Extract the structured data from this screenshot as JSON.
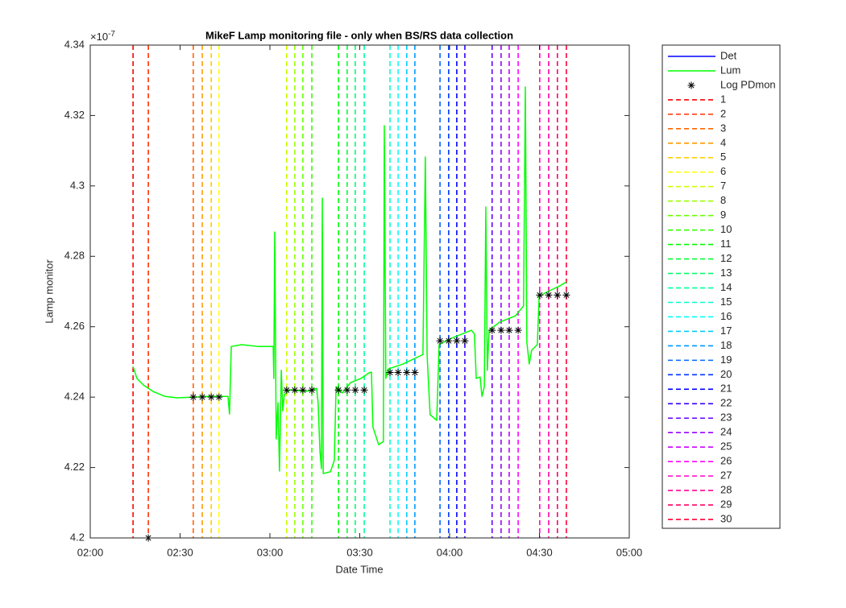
{
  "chart_data": {
    "type": "line",
    "title": "MikeF Lamp monitoring file - only when BS/RS data collection",
    "x_label": "Date Time",
    "y_label": "Lamp monitor",
    "y_scale_base": "×10",
    "y_scale_power": "-7",
    "xlim": [
      120,
      300
    ],
    "xticks": [
      {
        "value": 120,
        "label": "02:00"
      },
      {
        "value": 150,
        "label": "02:30"
      },
      {
        "value": 180,
        "label": "03:00"
      },
      {
        "value": 210,
        "label": "03:30"
      },
      {
        "value": 240,
        "label": "04:00"
      },
      {
        "value": 270,
        "label": "04:30"
      },
      {
        "value": 300,
        "label": "05:00"
      }
    ],
    "ylim": [
      4.2,
      4.34
    ],
    "yticks": [
      4.2,
      4.22,
      4.24,
      4.26,
      4.28,
      4.3,
      4.32,
      4.34
    ],
    "grid": false,
    "legend": "outside-right",
    "series": [
      {
        "name": "Det",
        "color": "#0000ff",
        "x": [],
        "values": []
      },
      {
        "name": "Lum",
        "color": "#00ff00",
        "x": [
          134.3,
          135.6,
          137.8,
          141.0,
          145.0,
          149.1,
          154.4,
          159.8,
          166.0,
          166.5,
          167.1,
          170.6,
          176.0,
          181.1,
          181.3,
          181.6,
          182.1,
          182.7,
          183.2,
          183.8,
          184.3,
          184.8,
          186.7,
          192.1,
          195.6,
          196.1,
          196.7,
          197.2,
          197.5,
          197.8,
          200.2,
          201.5,
          202.1,
          204.2,
          206.9,
          210.4,
          213.1,
          213.9,
          214.4,
          216.3,
          217.9,
          218.2,
          218.7,
          219.5,
          224.4,
          228.4,
          231.1,
          231.9,
          232.5,
          233.5,
          235.7,
          236.5,
          240.5,
          247.3,
          248.3,
          248.9,
          250.2,
          250.8,
          251.6,
          252.1,
          252.6,
          253.2,
          256.7,
          262.0,
          264.7,
          265.3,
          265.8,
          266.6,
          267.4,
          269.3,
          269.9,
          272.8,
          276.8,
          279.0
        ],
        "values": [
          4.2487,
          4.2453,
          4.2434,
          4.2416,
          4.2402,
          4.2398,
          4.24,
          4.2402,
          4.2402,
          4.2352,
          4.2544,
          4.2549,
          4.2544,
          4.2544,
          4.2453,
          4.2869,
          4.2281,
          4.2384,
          4.219,
          4.2476,
          4.2361,
          4.2407,
          4.2421,
          4.2416,
          4.2425,
          4.2384,
          4.2247,
          4.2197,
          4.2965,
          4.2183,
          4.2188,
          4.222,
          4.243,
          4.2412,
          4.2441,
          4.2453,
          4.2469,
          4.2471,
          4.2315,
          4.2265,
          4.2274,
          4.3171,
          4.2453,
          4.248,
          4.2494,
          4.251,
          4.2521,
          4.3082,
          4.2517,
          4.235,
          4.2334,
          4.2549,
          4.2567,
          4.259,
          4.2579,
          4.2453,
          4.2457,
          4.2402,
          4.243,
          4.294,
          4.2476,
          4.259,
          4.2613,
          4.2631,
          4.2659,
          4.3281,
          4.2556,
          4.2494,
          4.2533,
          4.2549,
          4.2686,
          4.27,
          4.2716,
          4.2727
        ]
      },
      {
        "name": "Log PDmon",
        "color": "#000000",
        "marker": "*",
        "line": false,
        "x": [
          139.4,
          154.4,
          157.4,
          160.4,
          163.0,
          185.6,
          188.3,
          191.0,
          194.0,
          202.9,
          205.8,
          208.5,
          211.5,
          220.1,
          222.8,
          225.7,
          228.4,
          236.8,
          239.7,
          242.4,
          245.1,
          254.2,
          257.2,
          259.9,
          262.9,
          270.1,
          273.1,
          276.0,
          279.0
        ],
        "values": [
          4.2,
          4.24,
          4.24,
          4.24,
          4.24,
          4.242,
          4.242,
          4.242,
          4.242,
          4.242,
          4.242,
          4.242,
          4.242,
          4.247,
          4.247,
          4.247,
          4.247,
          4.256,
          4.256,
          4.256,
          4.256,
          4.259,
          4.259,
          4.259,
          4.259,
          4.269,
          4.269,
          4.269,
          4.269
        ]
      }
    ],
    "vlines": [
      {
        "name": "1",
        "color": "#ff0000",
        "x": 134.3
      },
      {
        "name": "2",
        "color": "#ff3300",
        "x": 139.4
      },
      {
        "name": "3",
        "color": "#ff6600",
        "x": 154.4
      },
      {
        "name": "4",
        "color": "#ff9900",
        "x": 157.4
      },
      {
        "name": "5",
        "color": "#ffcc00",
        "x": 160.4
      },
      {
        "name": "6",
        "color": "#ffff00",
        "x": 163.0
      },
      {
        "name": "7",
        "color": "#ccff00",
        "x": 185.6
      },
      {
        "name": "8",
        "color": "#99ff00",
        "x": 188.3
      },
      {
        "name": "9",
        "color": "#66ff00",
        "x": 191.0
      },
      {
        "name": "10",
        "color": "#33ff00",
        "x": 194.0
      },
      {
        "name": "11",
        "color": "#00ff00",
        "x": 202.9
      },
      {
        "name": "12",
        "color": "#00ff33",
        "x": 205.8
      },
      {
        "name": "13",
        "color": "#00ff66",
        "x": 208.5
      },
      {
        "name": "14",
        "color": "#00ff99",
        "x": 211.5
      },
      {
        "name": "15",
        "color": "#00ffcc",
        "x": 220.1
      },
      {
        "name": "16",
        "color": "#00ffff",
        "x": 222.8
      },
      {
        "name": "17",
        "color": "#00ccff",
        "x": 225.7
      },
      {
        "name": "18",
        "color": "#0099ff",
        "x": 228.4
      },
      {
        "name": "19",
        "color": "#0066ff",
        "x": 236.8
      },
      {
        "name": "20",
        "color": "#0033ff",
        "x": 239.7
      },
      {
        "name": "21",
        "color": "#0000ff",
        "x": 242.4
      },
      {
        "name": "22",
        "color": "#3300ff",
        "x": 245.1
      },
      {
        "name": "23",
        "color": "#6600ff",
        "x": 254.2
      },
      {
        "name": "24",
        "color": "#9900ff",
        "x": 257.2
      },
      {
        "name": "25",
        "color": "#cc00ff",
        "x": 259.9
      },
      {
        "name": "26",
        "color": "#ff00ff",
        "x": 262.9
      },
      {
        "name": "27",
        "color": "#ff00cc",
        "x": 270.1
      },
      {
        "name": "28",
        "color": "#ff0099",
        "x": 273.1
      },
      {
        "name": "29",
        "color": "#ff0066",
        "x": 276.0
      },
      {
        "name": "30",
        "color": "#ff0033",
        "x": 279.0
      }
    ]
  }
}
